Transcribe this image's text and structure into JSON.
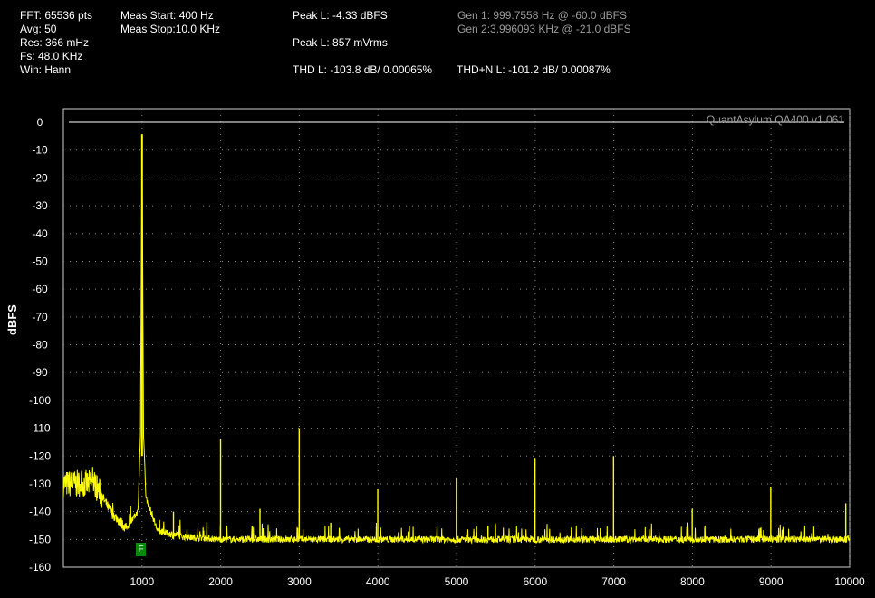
{
  "header": {
    "fft": "FFT: 65536 pts",
    "avg": "Avg: 50",
    "res": "Res: 366 mHz",
    "fs": "Fs: 48.0 KHz",
    "win": "Win: Hann",
    "meas_start": "Meas Start: 400 Hz",
    "meas_stop": "Meas Stop:10.0 KHz",
    "peak_l_dbfs": "Peak L: -4.33 dBFS",
    "peak_l_mv": "Peak L: 857 mVrms",
    "thd_l": "THD L: -103.8 dB/ 0.00065%",
    "thdn_l": "THD+N L: -101.2 dB/ 0.00087%",
    "gen1": "Gen 1: 999.7558 Hz @ -60.0  dBFS",
    "gen2": "Gen 2:3.996093 KHz @ -21.0  dBFS"
  },
  "marker_label": "F",
  "chart_data": {
    "type": "line",
    "watermark": "QuantAsylum QA400 v1.061",
    "xlabel": "",
    "ylabel": "dBFS",
    "xlim": [
      0,
      10000
    ],
    "ylim": [
      -160,
      0
    ],
    "x_ticks": [
      1000,
      2000,
      3000,
      4000,
      5000,
      6000,
      7000,
      8000,
      9000,
      10000
    ],
    "y_ticks": [
      0,
      -10,
      -20,
      -30,
      -40,
      -50,
      -60,
      -70,
      -80,
      -90,
      -100,
      -110,
      -120,
      -130,
      -140,
      -150,
      -160
    ],
    "grid": true,
    "series": [
      {
        "color": "#ffff00",
        "noise_floor_db": -150,
        "x": [
          400,
          600,
          800,
          950,
          980,
          1000,
          1020,
          1050,
          1200,
          1500,
          2000,
          3000,
          5000,
          8000,
          10000
        ],
        "y": [
          -130,
          -140,
          -146,
          -140,
          -112,
          -4.3,
          -112,
          -135,
          -147,
          -149,
          -150,
          -150,
          -150,
          -150,
          -150
        ]
      }
    ],
    "harmonic_spurs": [
      {
        "x": 1400,
        "y": -140
      },
      {
        "x": 1999,
        "y": -114
      },
      {
        "x": 2400,
        "y": -145
      },
      {
        "x": 2500,
        "y": -139
      },
      {
        "x": 2999,
        "y": -110
      },
      {
        "x": 3400,
        "y": -144
      },
      {
        "x": 3998,
        "y": -132
      },
      {
        "x": 4400,
        "y": -145
      },
      {
        "x": 4998,
        "y": -128
      },
      {
        "x": 5400,
        "y": -145
      },
      {
        "x": 5998,
        "y": -121
      },
      {
        "x": 6997,
        "y": -120
      },
      {
        "x": 7997,
        "y": -139
      },
      {
        "x": 8996,
        "y": -131
      },
      {
        "x": 9950,
        "y": -137
      }
    ]
  }
}
